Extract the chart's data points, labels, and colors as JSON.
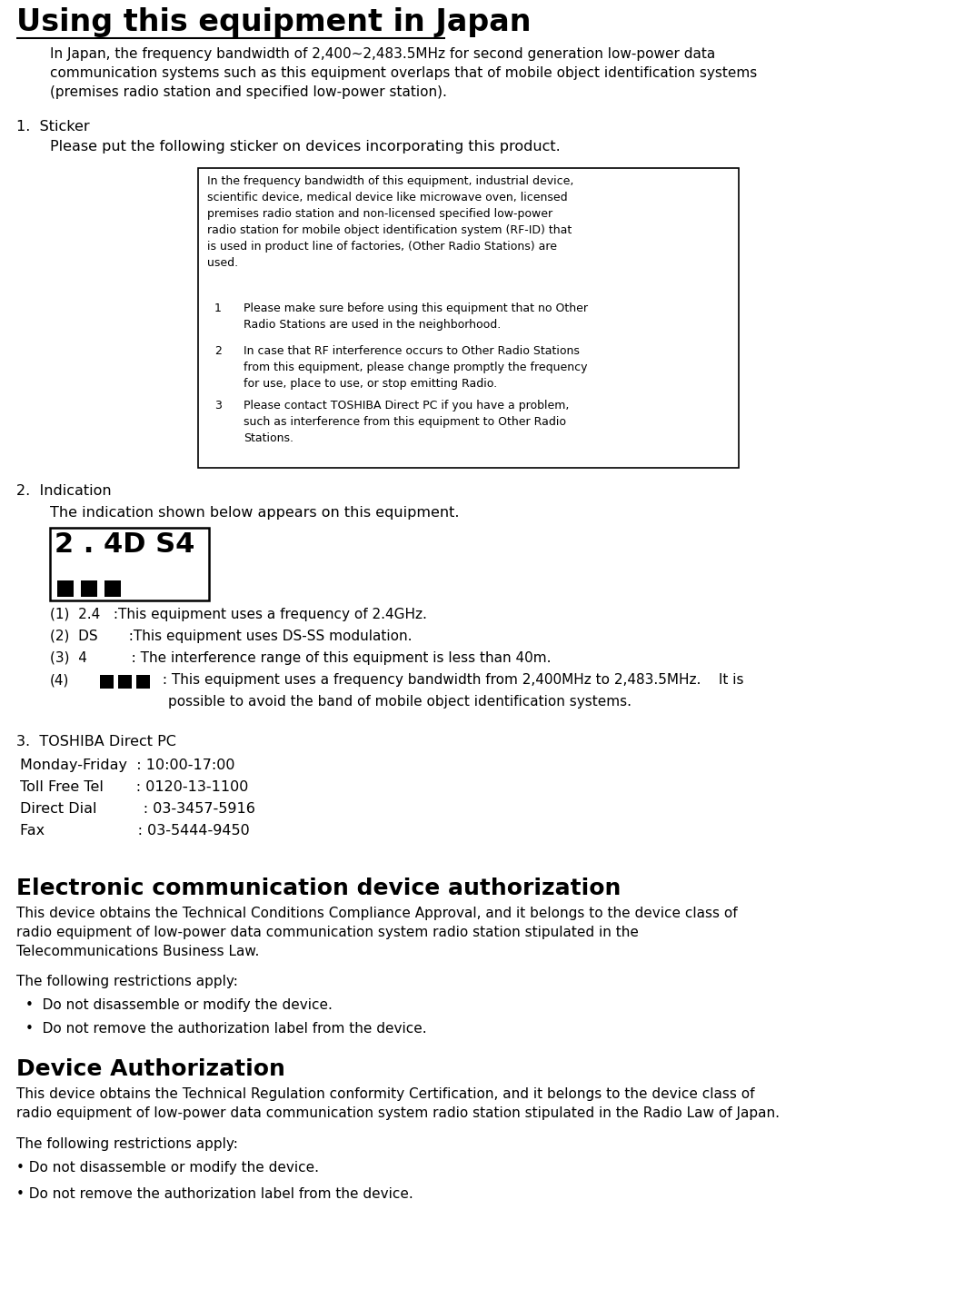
{
  "bg_color": "#ffffff",
  "title": "Using this equipment in Japan",
  "intro_text": "In Japan, the frequency bandwidth of 2,400~2,483.5MHz for second generation low-power data\ncommunication systems such as this equipment overlaps that of mobile object identification systems\n(premises radio station and specified low-power station).",
  "section1_heading": "1.  Sticker",
  "section1_intro": "Please put the following sticker on devices incorporating this product.",
  "box_text_main": "In the frequency bandwidth of this equipment, industrial device,\nscientific device, medical device like microwave oven, licensed\npremises radio station and non-licensed specified low-power\nradio station for mobile object identification system (RF-ID) that\nis used in product line of factories, (Other Radio Stations) are\nused.",
  "box_item1_num": "1",
  "box_item1_text": "Please make sure before using this equipment that no Other\nRadio Stations are used in the neighborhood.",
  "box_item2_num": "2",
  "box_item2_text": "In case that RF interference occurs to Other Radio Stations\nfrom this equipment, please change promptly the frequency\nfor use, place to use, or stop emitting Radio.",
  "box_item3_num": "3",
  "box_item3_text": "Please contact TOSHIBA Direct PC if you have a problem,\nsuch as interference from this equipment to Other Radio\nStations.",
  "section2_heading": "2.  Indication",
  "section2_intro": "The indication shown below appears on this equipment.",
  "section3_heading": "3.  TOSHIBA Direct PC",
  "contact_line1": "Monday-Friday  : 10:00-17:00",
  "contact_line2": "Toll Free Tel       : 0120-13-1100",
  "contact_line3": "Direct Dial          : 03-3457-5916",
  "contact_line4": "Fax                    : 03-5444-9450",
  "section4_heading": "Electronic communication device authorization",
  "section4_body1": "This device obtains the Technical Conditions Compliance Approval, and it belongs to the device class of",
  "section4_body2": "radio equipment of low-power data communication system radio station stipulated in the",
  "section4_body3": "Telecommunications Business Law.",
  "section4_restrictions_intro": "The following restrictions apply:",
  "section4_bullet1": "Do not disassemble or modify the device.",
  "section4_bullet2": "Do not remove the authorization label from the device.",
  "section5_heading": "Device Authorization",
  "section5_body1": "This device obtains the Technical Regulation conformity Certification, and it belongs to the device class of",
  "section5_body2": "radio equipment of low-power data communication system radio station stipulated in the Radio Law of Japan.",
  "section5_restrictions_intro": "The following restrictions apply:",
  "section5_bullet1": "Do not disassemble or modify the device.",
  "section5_bullet2": "Do not remove the authorization label from the device.",
  "desc1_prefix": "(1)  2.4",
  "desc1_text": "   :This equipment uses a frequency of 2.4GHz.",
  "desc2_prefix": "(2)  DS",
  "desc2_text": "       :This equipment uses DS-SS modulation.",
  "desc3_prefix": "(3)  4",
  "desc3_text": "          : The interference range of this equipment is less than 40m.",
  "desc4_prefix": "(4)",
  "desc4_text": " : This equipment uses a frequency bandwidth from 2,400MHz to 2,483.5MHz.    It is",
  "desc4_cont": "possible to avoid the band of mobile object identification systems."
}
